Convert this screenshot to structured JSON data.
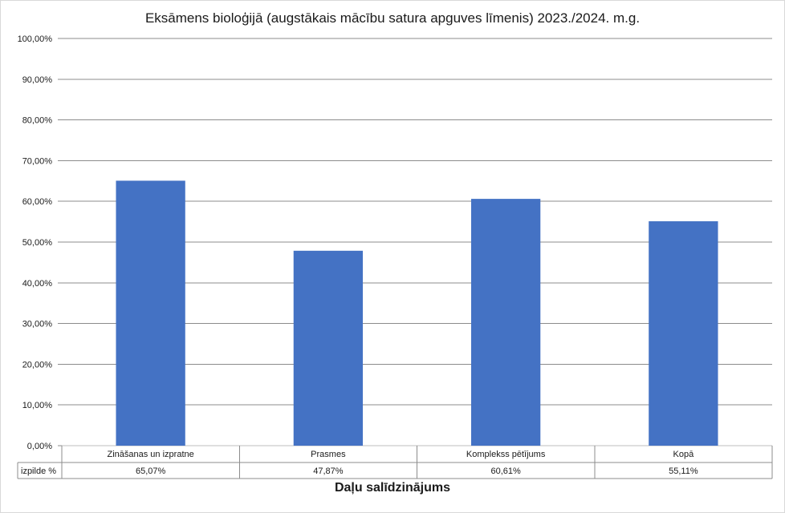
{
  "chart_data": {
    "type": "bar",
    "title": "Eksāmens bioloģijā  (augstākais mācību satura apguves līmenis) 2023./2024. m.g.",
    "xlabel": "Daļu salīdzinājums",
    "ylabel": "",
    "ylim": [
      0,
      100
    ],
    "ytick_labels": [
      "0,00%",
      "10,00%",
      "20,00%",
      "30,00%",
      "40,00%",
      "50,00%",
      "60,00%",
      "70,00%",
      "80,00%",
      "90,00%",
      "100,00%"
    ],
    "categories": [
      "Zināšanas un izpratne",
      "Prasmes",
      "Komplekss pētījums",
      "Kopā"
    ],
    "series": [
      {
        "name": "izpilde %",
        "values": [
          65.07,
          47.87,
          60.61,
          55.11
        ],
        "value_labels": [
          "65,07%",
          "47,87%",
          "60,61%",
          "55,11%"
        ],
        "color": "#4472c4"
      }
    ],
    "grid": true,
    "legend": "data-table"
  }
}
